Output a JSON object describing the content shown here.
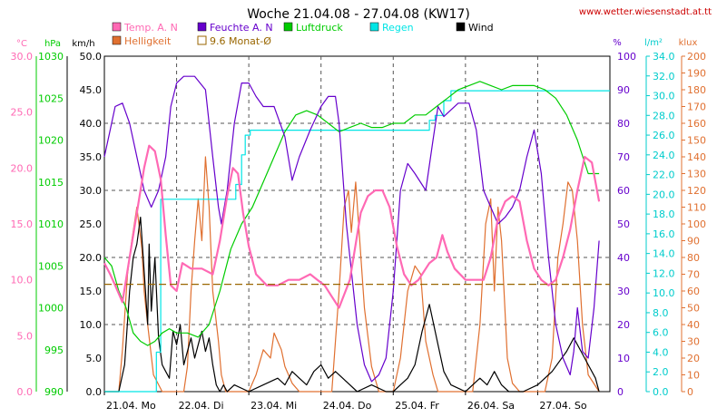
{
  "header": {
    "title": "Woche 21.04.08 - 27.04.08 (KW17)",
    "source": "www.wetter.wiesenstadt.at.tt"
  },
  "axis_units": {
    "temp": "°C",
    "pressure": "hPa",
    "wind": "km/h",
    "humidity": "%",
    "rain": "l/m²",
    "light": "klux"
  },
  "legend": [
    {
      "name": "Temp. A. N",
      "color": "#ff69b4",
      "swatch": "fill"
    },
    {
      "name": "Feuchte A. N",
      "color": "#6600cc",
      "swatch": "fill"
    },
    {
      "name": "Luftdruck",
      "color": "#00cc00",
      "swatch": "fill"
    },
    {
      "name": "Regen",
      "color": "#00e5e5",
      "swatch": "fill"
    },
    {
      "name": "Wind",
      "color": "#000000",
      "swatch": "fill"
    },
    {
      "name": "Helligkeit",
      "color": "#e07030",
      "swatch": "fill"
    },
    {
      "name": "9.6 Monat-Ø",
      "color": "#996600",
      "swatch": "outline"
    }
  ],
  "chart_data": {
    "type": "line",
    "x_unit": "days since 21.04.08 00:00",
    "xlim": [
      0,
      7
    ],
    "x_ticks": [
      {
        "x": 0,
        "label": "21.04. Mo"
      },
      {
        "x": 1,
        "label": "22.04. Di"
      },
      {
        "x": 2,
        "label": "23.04. Mi"
      },
      {
        "x": 3,
        "label": "24.04. Do"
      },
      {
        "x": 4,
        "label": "25.04. Fr"
      },
      {
        "x": 5,
        "label": "26.04. Sa"
      },
      {
        "x": 6,
        "label": "27.04. So"
      }
    ],
    "axes": {
      "wind": {
        "range": [
          0,
          50
        ],
        "ticks": [
          "0.0",
          "5.0",
          "10.0",
          "15.0",
          "20.0",
          "25.0",
          "30.0",
          "35.0",
          "40.0",
          "45.0",
          "50.0"
        ],
        "color": "#000000"
      },
      "pressure": {
        "range": [
          990,
          1030
        ],
        "ticks": [
          "990",
          "995",
          "1000",
          "1005",
          "1010",
          "1015",
          "1020",
          "1025",
          "1030"
        ],
        "color": "#00cc00"
      },
      "temp": {
        "range": [
          0,
          30
        ],
        "ticks": [
          "0.0",
          "5.0",
          "10.0",
          "15.0",
          "20.0",
          "25.0",
          "30.0"
        ],
        "color": "#ff69b4"
      },
      "humidity": {
        "range": [
          0,
          100
        ],
        "ticks": [
          "0",
          "10",
          "20",
          "30",
          "40",
          "50",
          "60",
          "70",
          "80",
          "90",
          "100"
        ],
        "color": "#6600cc"
      },
      "rain": {
        "range": [
          0,
          34
        ],
        "ticks": [
          "0.0",
          "2.0",
          "4.0",
          "6.0",
          "8.0",
          "10.0",
          "12.0",
          "14.0",
          "16.0",
          "18.0",
          "20.0",
          "22.0",
          "24.0",
          "26.0",
          "28.0",
          "30.0",
          "32.0",
          "34.0"
        ],
        "color": "#00cccc"
      },
      "light": {
        "range": [
          0,
          200
        ],
        "ticks": [
          "0",
          "10",
          "20",
          "30",
          "40",
          "50",
          "60",
          "70",
          "80",
          "90",
          "100",
          "110",
          "120",
          "130",
          "140",
          "150",
          "160",
          "170",
          "180",
          "190",
          "200"
        ],
        "color": "#e07030"
      }
    },
    "grid": true,
    "legend_position": "top",
    "series": [
      {
        "name": "Temp. A. N",
        "axis": "temp",
        "color": "#ff69b4",
        "x": [
          0,
          0.08,
          0.15,
          0.25,
          0.35,
          0.45,
          0.55,
          0.62,
          0.7,
          0.78,
          0.85,
          0.92,
          1.0,
          1.08,
          1.2,
          1.35,
          1.5,
          1.6,
          1.7,
          1.78,
          1.85,
          1.92,
          2.0,
          2.1,
          2.25,
          2.4,
          2.55,
          2.7,
          2.85,
          2.95,
          3.05,
          3.15,
          3.25,
          3.4,
          3.55,
          3.65,
          3.75,
          3.85,
          3.95,
          4.05,
          4.15,
          4.25,
          4.35,
          4.5,
          4.6,
          4.68,
          4.75,
          4.85,
          5.0,
          5.15,
          5.25,
          5.35,
          5.45,
          5.55,
          5.65,
          5.75,
          5.85,
          5.95,
          6.05,
          6.15,
          6.25,
          6.35,
          6.45,
          6.55,
          6.65,
          6.75,
          6.85
        ],
        "y": [
          11.5,
          10.5,
          9.5,
          8.0,
          12.0,
          16.0,
          20.0,
          22.0,
          21.5,
          19.0,
          14.0,
          9.5,
          9.0,
          11.5,
          11.0,
          11.0,
          10.5,
          13.5,
          17.5,
          20.0,
          19.5,
          16.0,
          13.0,
          10.5,
          9.5,
          9.5,
          10.0,
          10.0,
          10.5,
          10.0,
          9.5,
          8.5,
          7.5,
          10.0,
          16.0,
          17.5,
          18.0,
          18.0,
          16.5,
          13.0,
          10.5,
          9.5,
          10.0,
          11.5,
          12.0,
          14.0,
          12.5,
          11.0,
          10.0,
          10.0,
          10.0,
          12.0,
          15.5,
          17.0,
          17.5,
          17.0,
          13.5,
          11.0,
          10.0,
          9.5,
          10.0,
          12.0,
          14.5,
          18.0,
          21.0,
          20.5,
          17.0
        ]
      },
      {
        "name": "Feuchte A. N",
        "axis": "humidity",
        "color": "#6600cc",
        "x": [
          0,
          0.08,
          0.15,
          0.25,
          0.35,
          0.45,
          0.55,
          0.65,
          0.75,
          0.85,
          0.92,
          1.0,
          1.1,
          1.25,
          1.4,
          1.5,
          1.58,
          1.62,
          1.7,
          1.8,
          1.9,
          2.0,
          2.1,
          2.2,
          2.35,
          2.5,
          2.6,
          2.7,
          2.85,
          3.0,
          3.1,
          3.2,
          3.25,
          3.35,
          3.5,
          3.6,
          3.7,
          3.8,
          3.9,
          4.0,
          4.1,
          4.2,
          4.3,
          4.45,
          4.55,
          4.62,
          4.7,
          4.8,
          4.9,
          5.05,
          5.15,
          5.25,
          5.35,
          5.45,
          5.55,
          5.65,
          5.75,
          5.85,
          5.95,
          6.05,
          6.15,
          6.25,
          6.35,
          6.45,
          6.5,
          6.55,
          6.62,
          6.7,
          6.78,
          6.85
        ],
        "y": [
          70,
          78,
          85,
          86,
          80,
          70,
          60,
          55,
          60,
          70,
          85,
          92,
          94,
          94,
          90,
          70,
          55,
          50,
          60,
          80,
          92,
          92,
          88,
          85,
          85,
          76,
          63,
          70,
          78,
          85,
          88,
          88,
          80,
          50,
          20,
          8,
          3,
          5,
          10,
          30,
          60,
          68,
          65,
          60,
          75,
          85,
          82,
          84,
          86,
          86,
          78,
          60,
          55,
          50,
          52,
          55,
          60,
          70,
          78,
          65,
          40,
          20,
          10,
          5,
          12,
          25,
          12,
          10,
          25,
          45
        ]
      },
      {
        "name": "Luftdruck",
        "axis": "pressure",
        "color": "#00cc00",
        "x": [
          0,
          0.1,
          0.2,
          0.3,
          0.4,
          0.5,
          0.6,
          0.7,
          0.8,
          0.9,
          1.0,
          1.15,
          1.3,
          1.45,
          1.6,
          1.75,
          1.9,
          2.05,
          2.2,
          2.35,
          2.5,
          2.65,
          2.8,
          2.95,
          3.1,
          3.25,
          3.4,
          3.55,
          3.7,
          3.85,
          4.0,
          4.15,
          4.3,
          4.45,
          4.6,
          4.75,
          4.9,
          5.05,
          5.2,
          5.35,
          5.5,
          5.65,
          5.8,
          5.95,
          6.1,
          6.25,
          6.4,
          6.55,
          6.7,
          6.85
        ],
        "y": [
          1006,
          1005,
          1002,
          1000,
          997,
          996,
          995.5,
          996,
          997,
          997.5,
          997,
          997,
          996.5,
          998,
          1002,
          1007,
          1010,
          1012,
          1015,
          1018,
          1021,
          1023,
          1023.5,
          1023,
          1022,
          1021,
          1021.5,
          1022,
          1021.5,
          1021.5,
          1022,
          1022,
          1023,
          1023,
          1024,
          1025,
          1026,
          1026.5,
          1027,
          1026.5,
          1026,
          1026.5,
          1026.5,
          1026.5,
          1026,
          1025,
          1023,
          1020,
          1016,
          1016
        ]
      },
      {
        "name": "Regen",
        "axis": "rain",
        "color": "#00e5e5",
        "x": [
          0,
          0.72,
          0.72,
          0.78,
          0.78,
          1.82,
          1.82,
          1.9,
          1.9,
          1.95,
          1.95,
          2.02,
          2.02,
          2.1,
          2.1,
          4.5,
          4.5,
          4.58,
          4.58,
          4.7,
          4.7,
          4.8,
          4.8,
          4.85,
          4.85,
          7.0
        ],
        "y": [
          0,
          0,
          4,
          4,
          19.5,
          19.5,
          21,
          21,
          24,
          24,
          26,
          26,
          26.5,
          26.5,
          26.5,
          26.5,
          27.5,
          27.5,
          28,
          28,
          29.5,
          29.5,
          30.5,
          30.5,
          30.5,
          30.5
        ]
      },
      {
        "name": "Wind",
        "axis": "wind",
        "color": "#000000",
        "x": [
          0,
          0.2,
          0.28,
          0.35,
          0.4,
          0.45,
          0.5,
          0.55,
          0.6,
          0.62,
          0.65,
          0.7,
          0.75,
          0.8,
          0.85,
          0.9,
          0.95,
          1.0,
          1.05,
          1.1,
          1.15,
          1.2,
          1.25,
          1.3,
          1.35,
          1.4,
          1.45,
          1.5,
          1.55,
          1.6,
          1.65,
          1.7,
          1.8,
          2.0,
          2.2,
          2.4,
          2.5,
          2.6,
          2.7,
          2.8,
          2.9,
          3.0,
          3.1,
          3.2,
          3.3,
          3.5,
          3.7,
          3.9,
          4.0,
          4.1,
          4.2,
          4.3,
          4.4,
          4.5,
          4.6,
          4.7,
          4.8,
          5.0,
          5.1,
          5.2,
          5.3,
          5.4,
          5.5,
          5.6,
          5.8,
          6.0,
          6.2,
          6.4,
          6.5,
          6.6,
          6.7,
          6.8,
          6.85
        ],
        "y": [
          0,
          0,
          4,
          15,
          20,
          22,
          26,
          18,
          10,
          22,
          12,
          20,
          8,
          4,
          3,
          2,
          9,
          7,
          10,
          4,
          6,
          8,
          5,
          7,
          9,
          6,
          8,
          4,
          1,
          0,
          1,
          0,
          1,
          0,
          1,
          2,
          1,
          3,
          2,
          1,
          3,
          4,
          2,
          3,
          2,
          0,
          1,
          0,
          0,
          1,
          2,
          4,
          9,
          13,
          8,
          3,
          1,
          0,
          1,
          2,
          1,
          3,
          1,
          0,
          0,
          1,
          3,
          6,
          8,
          6,
          4,
          2,
          0
        ]
      },
      {
        "name": "Helligkeit",
        "axis": "light",
        "color": "#e07030",
        "x": [
          0,
          0.2,
          0.25,
          0.32,
          0.38,
          0.45,
          0.52,
          0.55,
          0.6,
          0.68,
          0.8,
          0.95,
          1.1,
          1.15,
          1.2,
          1.25,
          1.3,
          1.35,
          1.4,
          1.45,
          1.5,
          1.58,
          1.62,
          1.68,
          2.0,
          2.1,
          2.2,
          2.3,
          2.35,
          2.45,
          2.5,
          2.6,
          2.7,
          2.8,
          3.0,
          3.15,
          3.25,
          3.32,
          3.38,
          3.42,
          3.48,
          3.52,
          3.6,
          3.7,
          3.8,
          4.0,
          4.1,
          4.2,
          4.3,
          4.38,
          4.45,
          4.55,
          4.62,
          4.7,
          4.8,
          5.0,
          5.1,
          5.2,
          5.28,
          5.35,
          5.4,
          5.45,
          5.5,
          5.58,
          5.65,
          5.75,
          5.85,
          6.0,
          6.1,
          6.2,
          6.28,
          6.35,
          6.42,
          6.48,
          6.55,
          6.62,
          6.7,
          6.85
        ],
        "y": [
          0,
          0,
          25,
          70,
          90,
          110,
          85,
          60,
          40,
          10,
          0,
          0,
          0,
          15,
          60,
          90,
          115,
          90,
          140,
          110,
          60,
          30,
          10,
          0,
          0,
          10,
          25,
          20,
          35,
          25,
          15,
          5,
          0,
          0,
          0,
          0,
          60,
          110,
          120,
          95,
          125,
          100,
          50,
          15,
          0,
          0,
          20,
          60,
          75,
          70,
          30,
          10,
          0,
          0,
          0,
          0,
          0,
          40,
          100,
          115,
          60,
          110,
          90,
          20,
          5,
          0,
          0,
          0,
          0,
          20,
          80,
          100,
          125,
          120,
          90,
          40,
          10,
          0
        ]
      },
      {
        "name": "9.6 Monat-Ø",
        "axis": "temp",
        "color": "#996600",
        "dashed": true,
        "x": [
          0,
          7
        ],
        "y": [
          9.6,
          9.6
        ]
      }
    ]
  }
}
